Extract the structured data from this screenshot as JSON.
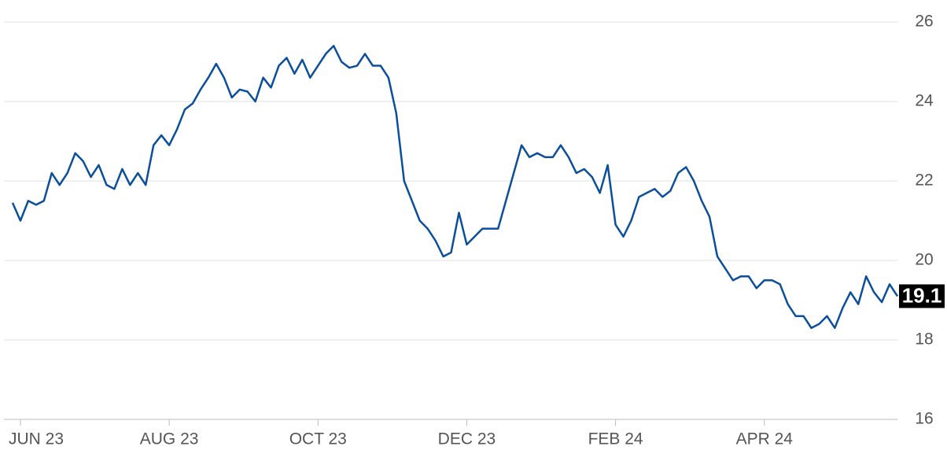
{
  "chart_data": {
    "type": "line",
    "color": "#0b4f9c",
    "grid": true,
    "categories": [
      null,
      "JUN 23",
      null,
      null,
      null,
      null,
      null,
      null,
      null,
      null,
      null,
      null,
      null,
      null,
      null,
      null,
      null,
      null,
      null,
      null,
      "AUG 23",
      null,
      null,
      null,
      null,
      null,
      null,
      null,
      null,
      null,
      null,
      null,
      null,
      null,
      null,
      null,
      null,
      null,
      null,
      "OCT 23",
      null,
      null,
      null,
      null,
      null,
      null,
      null,
      null,
      null,
      null,
      null,
      null,
      null,
      null,
      null,
      null,
      null,
      null,
      "DEC 23",
      null,
      null,
      null,
      null,
      null,
      null,
      null,
      null,
      null,
      null,
      null,
      null,
      null,
      null,
      null,
      null,
      null,
      null,
      "FEB 24",
      null,
      null,
      null,
      null,
      null,
      null,
      null,
      null,
      null,
      null,
      null,
      null,
      null,
      null,
      null,
      null,
      null,
      null,
      "APR 24",
      null,
      null,
      null,
      null,
      null,
      null,
      null,
      null,
      null,
      null,
      null,
      null,
      null,
      null,
      null,
      null,
      null
    ],
    "values": [
      21.45,
      21.0,
      21.5,
      21.4,
      21.5,
      22.2,
      21.9,
      22.2,
      22.7,
      22.5,
      22.1,
      22.4,
      21.9,
      21.8,
      22.3,
      21.9,
      22.2,
      21.9,
      22.9,
      23.15,
      22.9,
      23.3,
      23.8,
      23.95,
      24.3,
      24.6,
      24.95,
      24.6,
      24.1,
      24.3,
      24.25,
      24.0,
      24.6,
      24.35,
      24.9,
      25.1,
      24.7,
      25.05,
      24.6,
      24.9,
      25.2,
      25.4,
      25.0,
      24.85,
      24.9,
      25.2,
      24.9,
      24.9,
      24.6,
      23.7,
      22.0,
      21.5,
      21.0,
      20.8,
      20.5,
      20.1,
      20.2,
      21.2,
      20.4,
      20.6,
      20.8,
      20.8,
      20.8,
      21.5,
      22.2,
      22.9,
      22.6,
      22.7,
      22.6,
      22.6,
      22.9,
      22.6,
      22.2,
      22.3,
      22.1,
      21.7,
      22.4,
      20.9,
      20.6,
      21.0,
      21.6,
      21.7,
      21.8,
      21.6,
      21.75,
      22.2,
      22.35,
      22.0,
      21.5,
      21.1,
      20.1,
      19.8,
      19.5,
      19.6,
      19.6,
      19.3,
      19.5,
      19.5,
      19.4,
      18.9,
      18.6,
      18.6,
      18.3,
      18.4,
      18.6,
      18.3,
      18.8,
      19.2,
      18.9,
      19.6,
      19.2,
      18.95,
      19.4,
      19.1
    ],
    "current_value": 19.1,
    "ylim": [
      16,
      26
    ],
    "yticks": [
      16,
      18,
      20,
      22,
      24,
      26
    ]
  }
}
